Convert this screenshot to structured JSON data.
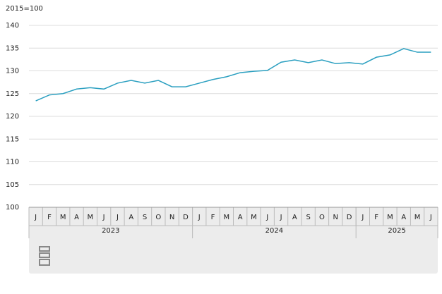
{
  "chart_data": {
    "type": "line",
    "y_label": "2015=100",
    "color": "#2a9fc0",
    "groups": [
      {
        "label": "2023",
        "categories": [
          "J",
          "F",
          "M",
          "A",
          "M",
          "J",
          "J",
          "A",
          "S",
          "O",
          "N",
          "D"
        ]
      },
      {
        "label": "2024",
        "categories": [
          "J",
          "F",
          "M",
          "A",
          "M",
          "J",
          "J",
          "A",
          "S",
          "O",
          "N",
          "D"
        ]
      },
      {
        "label": "2025",
        "categories": [
          "J",
          "F",
          "M",
          "A",
          "M",
          "J"
        ]
      }
    ],
    "values": [
      123.4,
      124.7,
      125.0,
      126.0,
      126.3,
      126.0,
      127.3,
      127.9,
      127.3,
      127.9,
      126.5,
      126.5,
      127.3,
      128.1,
      128.7,
      129.6,
      129.9,
      130.1,
      131.9,
      132.4,
      131.8,
      132.4,
      131.6,
      131.8,
      131.5,
      133.0,
      133.5,
      134.9,
      134.1,
      134.1
    ],
    "ylim": [
      100,
      140
    ],
    "yticks": [
      100,
      105,
      110,
      115,
      120,
      125,
      130,
      135,
      140
    ],
    "grid": true
  }
}
